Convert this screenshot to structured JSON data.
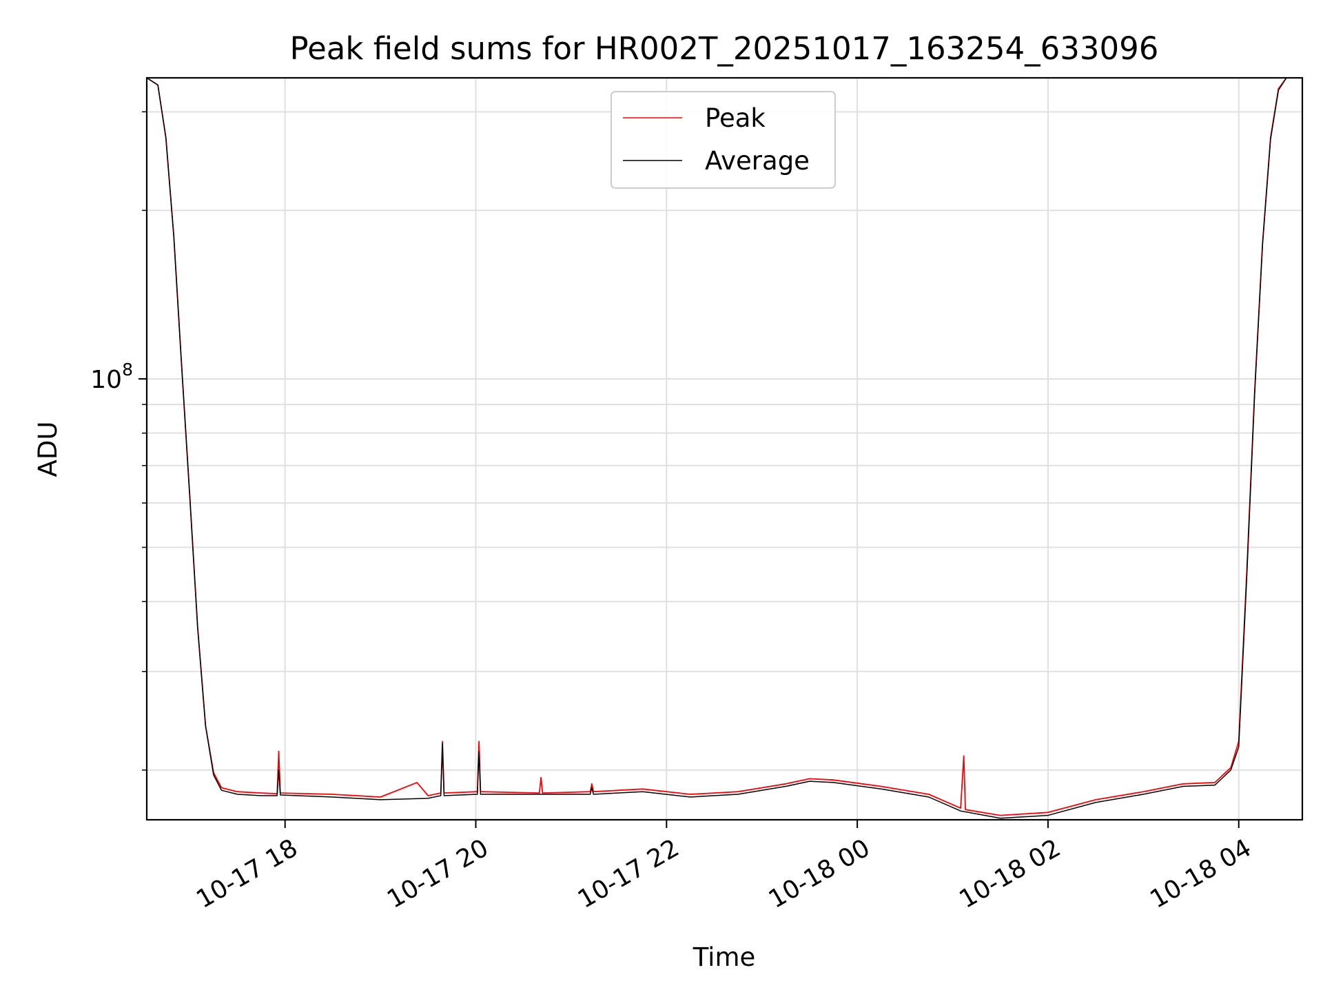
{
  "chart_data": {
    "type": "line",
    "title": "Peak field sums for HR002T_20251017_163254_633096",
    "xlabel": "Time",
    "ylabel": "ADU",
    "y_scale": "log",
    "xlim": [
      "2025-10-17 16:33",
      "2025-10-18 04:40"
    ],
    "ylim": [
      16300000,
      345000000
    ],
    "grid": true,
    "legend_position": "upper center",
    "x_ticks": [
      {
        "t": "2025-10-17 18:00",
        "label": "10-17 18"
      },
      {
        "t": "2025-10-17 20:00",
        "label": "10-17 20"
      },
      {
        "t": "2025-10-17 22:00",
        "label": "10-17 22"
      },
      {
        "t": "2025-10-18 00:00",
        "label": "10-18 00"
      },
      {
        "t": "2025-10-18 02:00",
        "label": "10-18 02"
      },
      {
        "t": "2025-10-18 04:00",
        "label": "10-18 04"
      }
    ],
    "y_tick_labels": [
      {
        "value": 100000000,
        "label": "10",
        "exponent": "8"
      }
    ],
    "series": [
      {
        "name": "Peak",
        "color": "#ff0000",
        "points": [
          [
            "2025-10-17 16:33",
            345000000
          ],
          [
            "2025-10-17 16:40",
            335000000
          ],
          [
            "2025-10-17 16:45",
            270000000
          ],
          [
            "2025-10-17 16:50",
            180000000
          ],
          [
            "2025-10-17 16:55",
            105000000
          ],
          [
            "2025-10-17 17:00",
            62000000
          ],
          [
            "2025-10-17 17:05",
            36000000
          ],
          [
            "2025-10-17 17:10",
            24000000
          ],
          [
            "2025-10-17 17:15",
            19800000
          ],
          [
            "2025-10-17 17:20",
            18600000
          ],
          [
            "2025-10-17 17:30",
            18300000
          ],
          [
            "2025-10-17 17:45",
            18200000
          ],
          [
            "2025-10-17 17:55",
            18150000
          ],
          [
            "2025-10-17 17:56",
            21600000
          ],
          [
            "2025-10-17 17:57",
            18200000
          ],
          [
            "2025-10-17 18:30",
            18100000
          ],
          [
            "2025-10-17 19:00",
            17900000
          ],
          [
            "2025-10-17 19:30",
            18000000
          ],
          [
            "2025-10-17 19:23",
            19000000
          ],
          [
            "2025-10-17 19:38",
            18200000
          ],
          [
            "2025-10-17 19:39",
            22500000
          ],
          [
            "2025-10-17 19:40",
            18200000
          ],
          [
            "2025-10-17 20:01",
            18300000
          ],
          [
            "2025-10-17 20:02",
            22500000
          ],
          [
            "2025-10-17 20:03",
            18300000
          ],
          [
            "2025-10-17 20:40",
            18200000
          ],
          [
            "2025-10-17 20:41",
            19400000
          ],
          [
            "2025-10-17 20:42",
            18200000
          ],
          [
            "2025-10-17 21:12",
            18300000
          ],
          [
            "2025-10-17 21:13",
            18900000
          ],
          [
            "2025-10-17 21:14",
            18300000
          ],
          [
            "2025-10-17 21:45",
            18500000
          ],
          [
            "2025-10-17 22:15",
            18100000
          ],
          [
            "2025-10-17 22:45",
            18300000
          ],
          [
            "2025-10-17 23:15",
            18900000
          ],
          [
            "2025-10-17 23:30",
            19300000
          ],
          [
            "2025-10-17 23:45",
            19200000
          ],
          [
            "2025-10-18 00:15",
            18700000
          ],
          [
            "2025-10-18 00:45",
            18100000
          ],
          [
            "2025-10-18 01:05",
            17100000
          ],
          [
            "2025-10-18 01:07",
            21200000
          ],
          [
            "2025-10-18 01:08",
            17000000
          ],
          [
            "2025-10-18 01:30",
            16600000
          ],
          [
            "2025-10-18 02:00",
            16800000
          ],
          [
            "2025-10-18 02:30",
            17700000
          ],
          [
            "2025-10-18 03:00",
            18300000
          ],
          [
            "2025-10-18 03:25",
            18900000
          ],
          [
            "2025-10-18 03:45",
            19000000
          ],
          [
            "2025-10-18 03:55",
            20200000
          ],
          [
            "2025-10-18 04:00",
            22500000
          ],
          [
            "2025-10-18 04:05",
            45000000
          ],
          [
            "2025-10-18 04:10",
            95000000
          ],
          [
            "2025-10-18 04:15",
            175000000
          ],
          [
            "2025-10-18 04:20",
            270000000
          ],
          [
            "2025-10-18 04:25",
            330000000
          ],
          [
            "2025-10-18 04:30",
            345000000
          ],
          [
            "2025-10-18 04:40",
            345000000
          ]
        ]
      },
      {
        "name": "Average",
        "color": "#000000",
        "points": [
          [
            "2025-10-17 16:33",
            345000000
          ],
          [
            "2025-10-17 16:40",
            335000000
          ],
          [
            "2025-10-17 16:45",
            270000000
          ],
          [
            "2025-10-17 16:50",
            180000000
          ],
          [
            "2025-10-17 16:55",
            105000000
          ],
          [
            "2025-10-17 17:00",
            62000000
          ],
          [
            "2025-10-17 17:05",
            36000000
          ],
          [
            "2025-10-17 17:10",
            24000000
          ],
          [
            "2025-10-17 17:15",
            19600000
          ],
          [
            "2025-10-17 17:20",
            18400000
          ],
          [
            "2025-10-17 17:30",
            18100000
          ],
          [
            "2025-10-17 17:45",
            18000000
          ],
          [
            "2025-10-17 17:55",
            18000000
          ],
          [
            "2025-10-17 17:56",
            20000000
          ],
          [
            "2025-10-17 17:57",
            18050000
          ],
          [
            "2025-10-17 18:30",
            17900000
          ],
          [
            "2025-10-17 19:00",
            17700000
          ],
          [
            "2025-10-17 19:30",
            17800000
          ],
          [
            "2025-10-17 19:38",
            18000000
          ],
          [
            "2025-10-17 19:39",
            22300000
          ],
          [
            "2025-10-17 19:40",
            18000000
          ],
          [
            "2025-10-17 20:01",
            18100000
          ],
          [
            "2025-10-17 20:02",
            21600000
          ],
          [
            "2025-10-17 20:03",
            18100000
          ],
          [
            "2025-10-17 21:12",
            18100000
          ],
          [
            "2025-10-17 21:13",
            18600000
          ],
          [
            "2025-10-17 21:14",
            18100000
          ],
          [
            "2025-10-17 21:45",
            18300000
          ],
          [
            "2025-10-17 22:15",
            17900000
          ],
          [
            "2025-10-17 22:45",
            18100000
          ],
          [
            "2025-10-17 23:15",
            18700000
          ],
          [
            "2025-10-17 23:30",
            19100000
          ],
          [
            "2025-10-17 23:45",
            19000000
          ],
          [
            "2025-10-18 00:15",
            18500000
          ],
          [
            "2025-10-18 00:45",
            17900000
          ],
          [
            "2025-10-18 01:05",
            16900000
          ],
          [
            "2025-10-18 01:30",
            16400000
          ],
          [
            "2025-10-18 02:00",
            16600000
          ],
          [
            "2025-10-18 02:30",
            17500000
          ],
          [
            "2025-10-18 03:00",
            18100000
          ],
          [
            "2025-10-18 03:25",
            18700000
          ],
          [
            "2025-10-18 03:45",
            18800000
          ],
          [
            "2025-10-18 03:55",
            20000000
          ],
          [
            "2025-10-18 04:00",
            22000000
          ],
          [
            "2025-10-18 04:05",
            44000000
          ],
          [
            "2025-10-18 04:10",
            94000000
          ],
          [
            "2025-10-18 04:15",
            174000000
          ],
          [
            "2025-10-18 04:20",
            268000000
          ],
          [
            "2025-10-18 04:25",
            328000000
          ],
          [
            "2025-10-18 04:30",
            345000000
          ],
          [
            "2025-10-18 04:40",
            345000000
          ]
        ]
      }
    ]
  }
}
